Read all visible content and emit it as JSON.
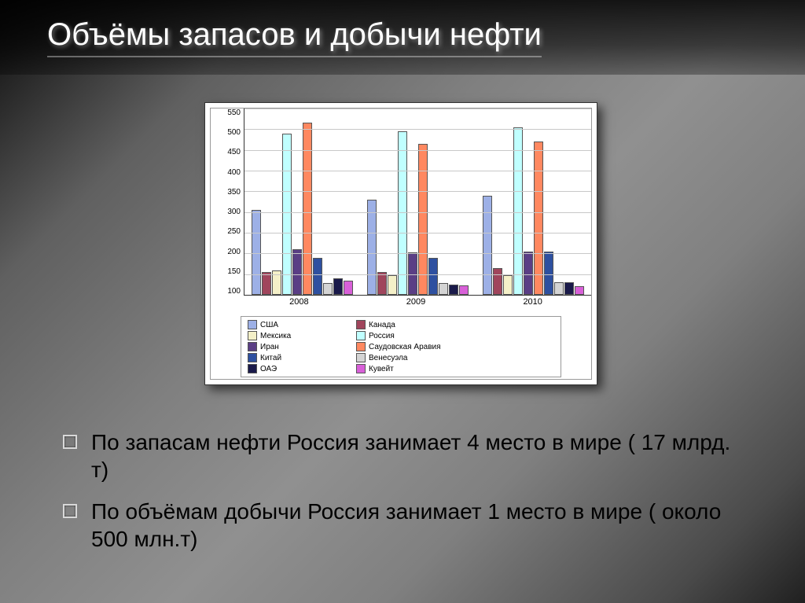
{
  "title": "Объёмы запасов и добычи нефти",
  "chart": {
    "type": "bar",
    "ylim": [
      100,
      550
    ],
    "ytick_step": 50,
    "yticks": [
      100,
      150,
      200,
      250,
      300,
      350,
      400,
      450,
      500,
      550
    ],
    "background_color": "#ffffff",
    "grid_color": "#c8c8c8",
    "border_color": "#333333",
    "label_fontsize": 10,
    "categories": [
      "2008",
      "2009",
      "2010"
    ],
    "series": [
      {
        "name": "США",
        "color": "#9db0e6",
        "values": [
          305,
          330,
          340
        ]
      },
      {
        "name": "Канада",
        "color": "#a0455c",
        "values": [
          155,
          155,
          165
        ]
      },
      {
        "name": "Мексика",
        "color": "#f4f0c8",
        "values": [
          158,
          148,
          148
        ]
      },
      {
        "name": "Россия",
        "color": "#c0ffff",
        "values": [
          490,
          495,
          505
        ]
      },
      {
        "name": "Иран",
        "color": "#5a3e85",
        "values": [
          210,
          202,
          205
        ]
      },
      {
        "name": "Саудовская Аравия",
        "color": "#ff8860",
        "values": [
          515,
          465,
          470
        ]
      },
      {
        "name": "Китай",
        "color": "#2e50a0",
        "values": [
          190,
          190,
          205
        ]
      },
      {
        "name": "Венесуэла",
        "color": "#d4d4d4",
        "values": [
          128,
          128,
          130
        ]
      },
      {
        "name": "ОАЭ",
        "color": "#1a1a4a",
        "values": [
          140,
          125,
          130
        ]
      },
      {
        "name": "Кувейт",
        "color": "#d860d8",
        "values": [
          135,
          122,
          120
        ]
      }
    ]
  },
  "bullets": [
    "По запасам нефти Россия занимает 4 место в мире ( 17 млрд. т)",
    "По объёмам добычи Россия занимает 1 место в мире ( около 500 млн.т)"
  ]
}
